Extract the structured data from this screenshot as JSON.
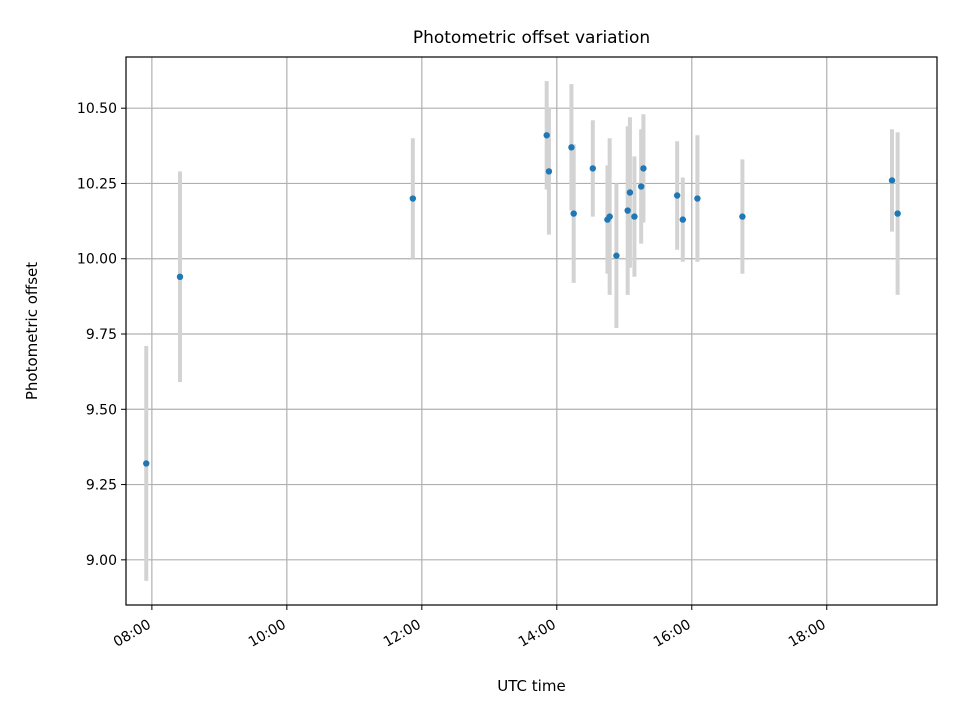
{
  "chart_data": {
    "type": "scatter",
    "title": "Photometric offset variation",
    "xlabel": "UTC time",
    "ylabel": "Photometric offset",
    "xlim": [
      "07:37",
      "19:38"
    ],
    "ylim": [
      8.85,
      10.67
    ],
    "x_ticks": [
      "08:00",
      "10:00",
      "12:00",
      "14:00",
      "16:00",
      "18:00"
    ],
    "y_ticks": [
      "9.00",
      "9.25",
      "9.50",
      "9.75",
      "10.00",
      "10.25",
      "10.50"
    ],
    "grid": true,
    "colors": {
      "point": "#1f77b4",
      "errorbar": "#d3d3d3",
      "grid": "#b0b0b0"
    },
    "points": [
      {
        "x": "07:55",
        "y": 9.32,
        "err": 0.39
      },
      {
        "x": "08:25",
        "y": 9.94,
        "err": 0.35
      },
      {
        "x": "11:52",
        "y": 10.2,
        "err": 0.2
      },
      {
        "x": "13:51",
        "y": 10.41,
        "err": 0.18
      },
      {
        "x": "13:53",
        "y": 10.29,
        "err": 0.21
      },
      {
        "x": "14:13",
        "y": 10.37,
        "err": 0.21
      },
      {
        "x": "14:15",
        "y": 10.15,
        "err": 0.23
      },
      {
        "x": "14:32",
        "y": 10.3,
        "err": 0.16
      },
      {
        "x": "14:45",
        "y": 10.13,
        "err": 0.18
      },
      {
        "x": "14:47",
        "y": 10.14,
        "err": 0.26
      },
      {
        "x": "14:53",
        "y": 10.01,
        "err": 0.24
      },
      {
        "x": "15:03",
        "y": 10.16,
        "err": 0.28
      },
      {
        "x": "15:05",
        "y": 10.22,
        "err": 0.25
      },
      {
        "x": "15:09",
        "y": 10.14,
        "err": 0.2
      },
      {
        "x": "15:15",
        "y": 10.24,
        "err": 0.19
      },
      {
        "x": "15:17",
        "y": 10.3,
        "err": 0.18
      },
      {
        "x": "15:47",
        "y": 10.21,
        "err": 0.18
      },
      {
        "x": "15:52",
        "y": 10.13,
        "err": 0.14
      },
      {
        "x": "16:05",
        "y": 10.2,
        "err": 0.21
      },
      {
        "x": "16:45",
        "y": 10.14,
        "err": 0.19
      },
      {
        "x": "18:58",
        "y": 10.26,
        "err": 0.17
      },
      {
        "x": "19:03",
        "y": 10.15,
        "err": 0.27
      }
    ]
  }
}
